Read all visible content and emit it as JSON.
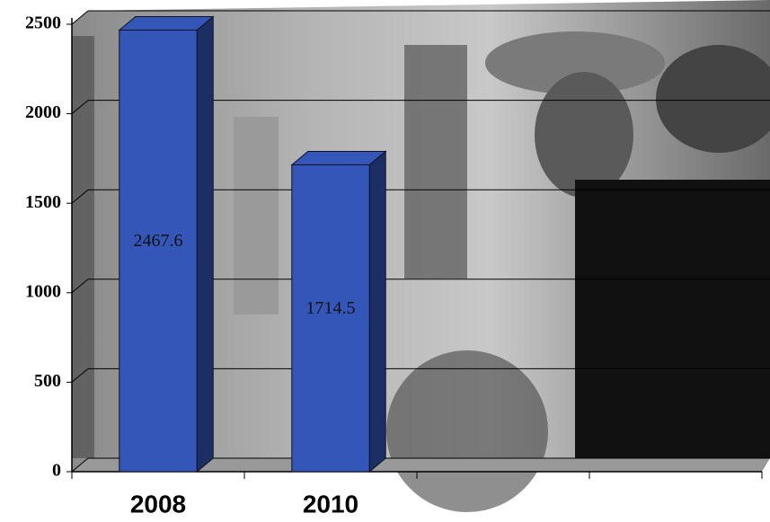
{
  "chart_data": {
    "type": "bar3d",
    "categories": [
      "2008",
      "2010",
      null,
      null
    ],
    "values": [
      2467.6,
      1714.5,
      null,
      null
    ],
    "color": "#3356b8",
    "ylim": [
      0,
      2500
    ],
    "yticks": [
      0,
      500,
      1000,
      1500,
      2000,
      2500
    ],
    "grid": true
  }
}
